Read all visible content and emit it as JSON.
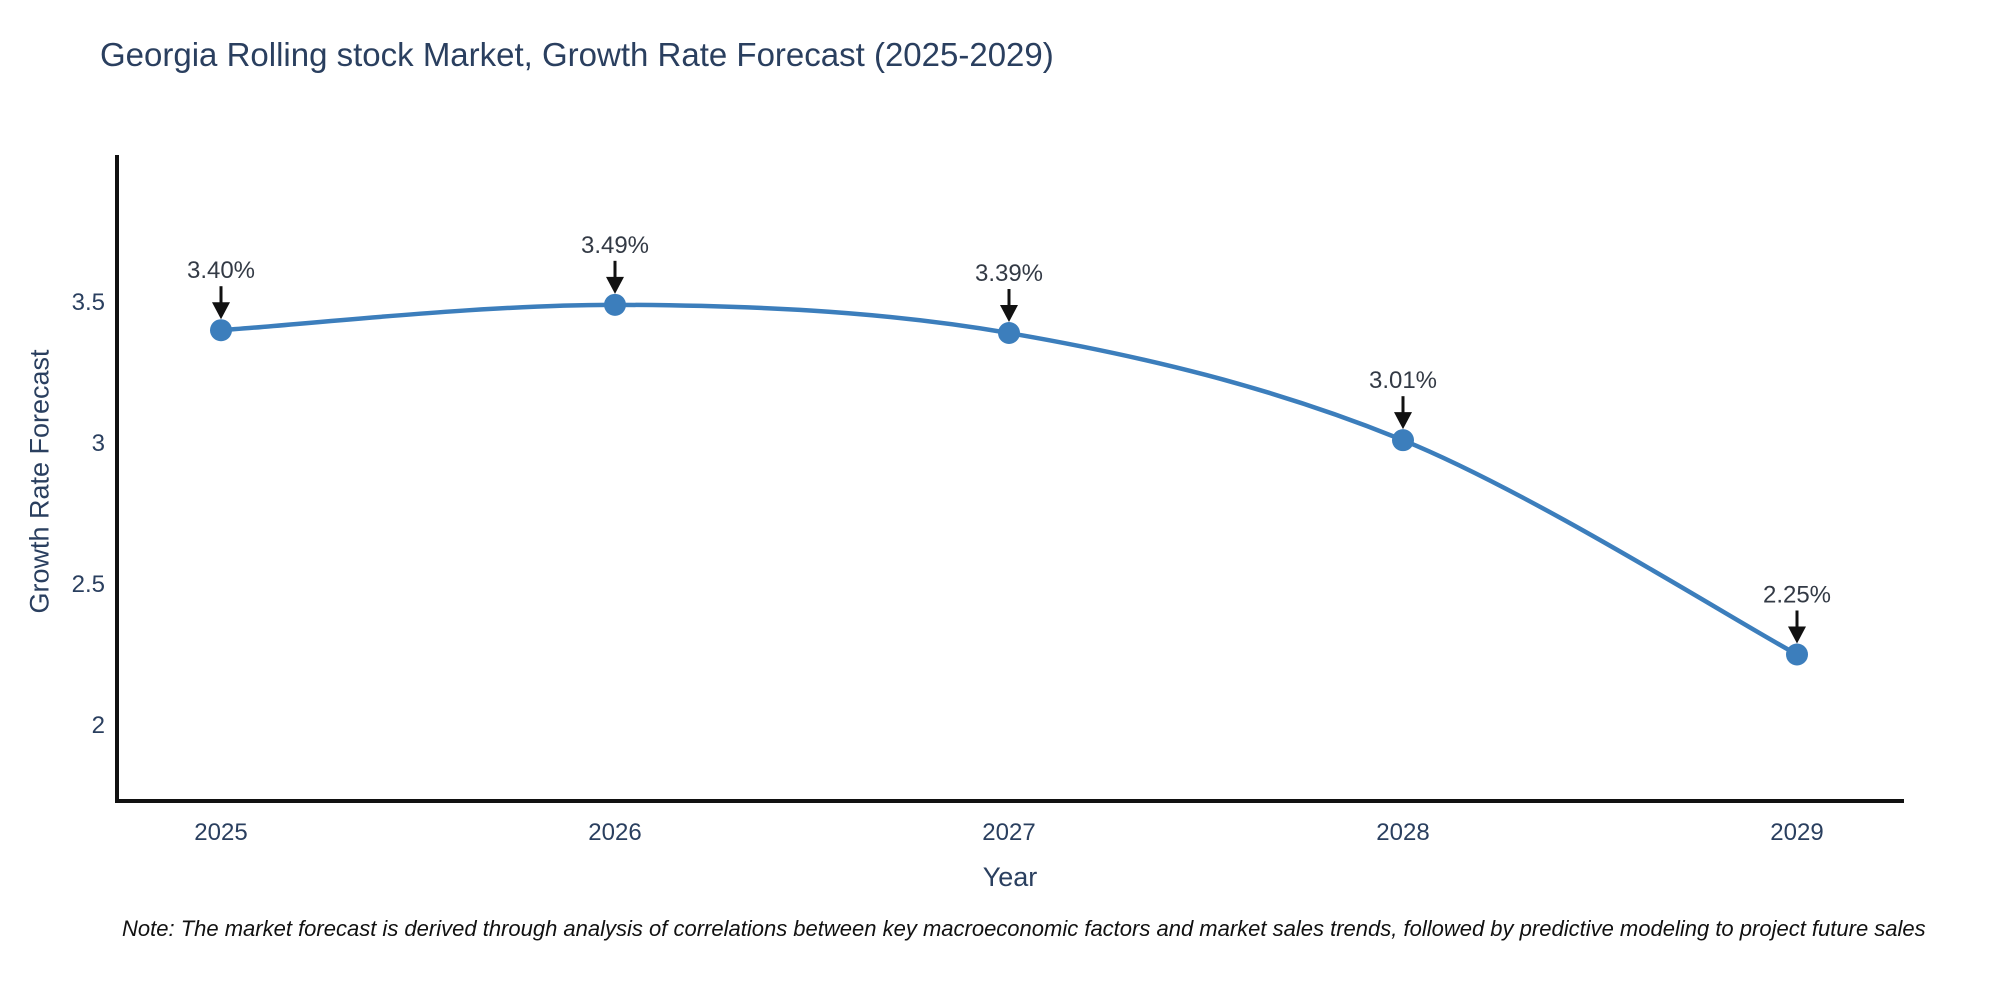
{
  "header": {
    "title": "Georgia Rolling stock Market, Growth Rate Forecast (2025-2029)"
  },
  "footnote": "Note: The market forecast is derived through analysis of correlations between key macroeconomic factors and market sales trends, followed by predictive modeling to project future sales",
  "chart_data": {
    "type": "line",
    "title": "Georgia Rolling stock Market, Growth Rate Forecast (2025-2029)",
    "xlabel": "Year",
    "ylabel": "Growth Rate Forecast",
    "x": [
      2025,
      2026,
      2027,
      2028,
      2029
    ],
    "y": [
      3.4,
      3.49,
      3.39,
      3.01,
      2.25
    ],
    "series": [
      {
        "name": "Growth Rate Forecast",
        "values": [
          3.4,
          3.49,
          3.39,
          3.01,
          2.25
        ]
      }
    ],
    "point_labels": [
      "3.40%",
      "3.49%",
      "3.39%",
      "3.01%",
      "2.25%"
    ],
    "xtick_labels": [
      "2025",
      "2026",
      "2027",
      "2028",
      "2029"
    ],
    "ytick_values": [
      3.5,
      3,
      2.5,
      2
    ],
    "ytick_labels": [
      "3.5",
      "3",
      "2.5",
      "2"
    ],
    "ylim": [
      1.73,
      4.01
    ],
    "line_shape": "spline",
    "grid": false,
    "legend": "none",
    "colors": {
      "line": "#3c7ebc",
      "marker": "#3c7ebc",
      "axis_line": "#111111",
      "axis_text": "#2a3f5f",
      "annotation_text": "#333a45",
      "arrow": "#111111",
      "background": "#ffffff"
    }
  }
}
